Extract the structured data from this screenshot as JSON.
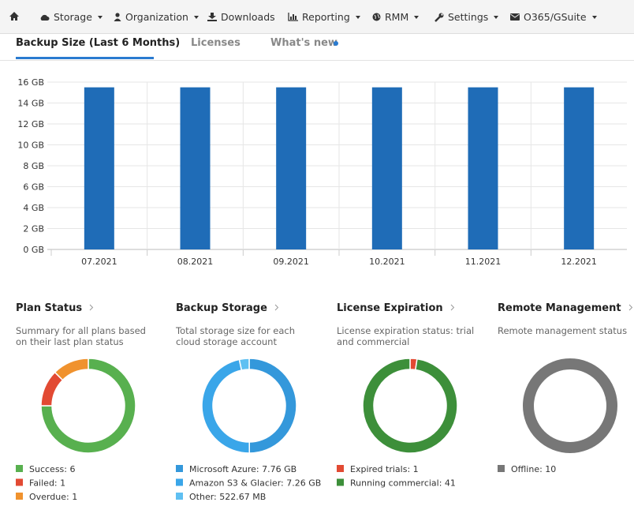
{
  "nav": {
    "items": [
      "Storage",
      "Organization",
      "Downloads",
      "Reporting",
      "RMM",
      "Settings",
      "O365/GSuite"
    ]
  },
  "tabs": [
    "Backup Size (Last 6 Months)",
    "Licenses",
    "What's new"
  ],
  "chart": {
    "type": "bar",
    "categories": [
      "07.2021",
      "08.2021",
      "09.2021",
      "10.2021",
      "11.2021",
      "12.2021"
    ],
    "values": [
      15.5,
      15.5,
      15.5,
      15.5,
      15.5,
      15.5
    ],
    "color": "#1f6cb7",
    "ylim": [
      0,
      16
    ],
    "yticks": [
      {
        "value": 0,
        "label": "0 GB"
      },
      {
        "value": 2,
        "label": "2 GB"
      },
      {
        "value": 4,
        "label": "4 GB"
      },
      {
        "value": 6,
        "label": "6 GB"
      },
      {
        "value": 8,
        "label": "8 GB"
      },
      {
        "value": 10,
        "label": "10 GB"
      },
      {
        "value": 12,
        "label": "12 GB"
      },
      {
        "value": 14,
        "label": "14 GB"
      },
      {
        "value": 16,
        "label": "16 GB"
      }
    ],
    "grid": true
  },
  "widgets": [
    {
      "type": "donut",
      "title": "Plan Status",
      "description": "Summary for all plans based on their last plan status",
      "labels": [
        "Success: 6",
        "Failed: 1",
        "Overdue: 1"
      ],
      "values": [
        6,
        1,
        1
      ],
      "colors": [
        "#58b04f",
        "#e24a33",
        "#f0922e"
      ]
    },
    {
      "type": "donut",
      "title": "Backup Storage",
      "description": "Total storage size for each cloud storage account",
      "labels": [
        "Microsoft Azure: 7.76 GB",
        "Amazon S3 & Glacier: 7.26 GB",
        "Other: 522.67 MB"
      ],
      "values": [
        7.76,
        7.26,
        0.52267
      ],
      "colors": [
        "#3498db",
        "#3aa6e9",
        "#5fc0f2"
      ]
    },
    {
      "type": "donut",
      "title": "License Expiration",
      "description": "License expiration status: trial and commercial",
      "labels": [
        "Expired trials: 1",
        "Running commercial: 41"
      ],
      "values": [
        1,
        41
      ],
      "colors": [
        "#e24a33",
        "#3d8f3a"
      ]
    },
    {
      "type": "donut",
      "title": "Remote Management",
      "description": "Remote management status",
      "labels": [
        "Offline: 10"
      ],
      "values": [
        10
      ],
      "colors": [
        "#777777"
      ]
    }
  ]
}
